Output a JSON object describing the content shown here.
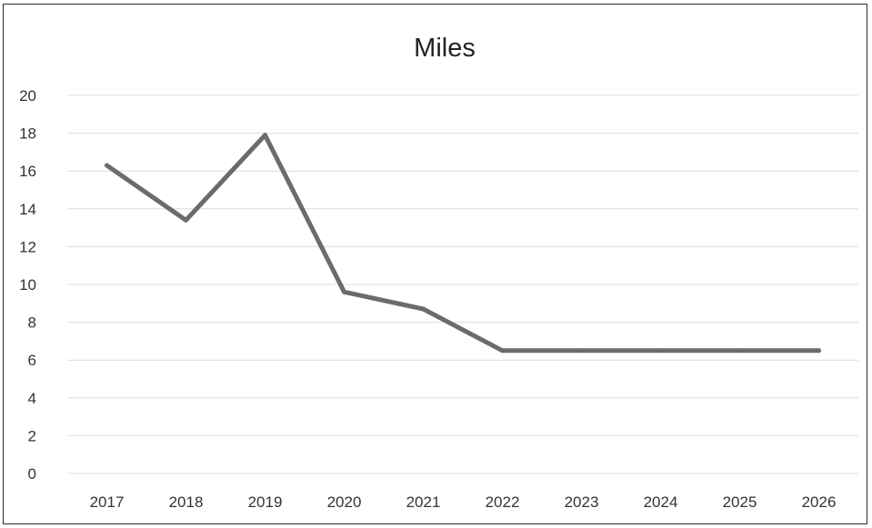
{
  "chart_data": {
    "type": "line",
    "title": "Miles",
    "xlabel": "",
    "ylabel": "",
    "categories": [
      "2017",
      "2018",
      "2019",
      "2020",
      "2021",
      "2022",
      "2023",
      "2024",
      "2025",
      "2026"
    ],
    "series": [
      {
        "values": [
          16.3,
          13.4,
          17.9,
          9.6,
          8.7,
          6.5,
          6.5,
          6.5,
          6.5,
          6.5
        ],
        "color": "#6b6b6b"
      }
    ],
    "ylim": [
      0,
      20
    ],
    "y_ticks": [
      "0",
      "2",
      "4",
      "6",
      "8",
      "10",
      "12",
      "14",
      "16",
      "18",
      "20"
    ],
    "grid": true,
    "legend": "none",
    "colors": {
      "gridline": "#dcdcdc",
      "border": "#2b2b2b",
      "text": "#333333"
    }
  }
}
